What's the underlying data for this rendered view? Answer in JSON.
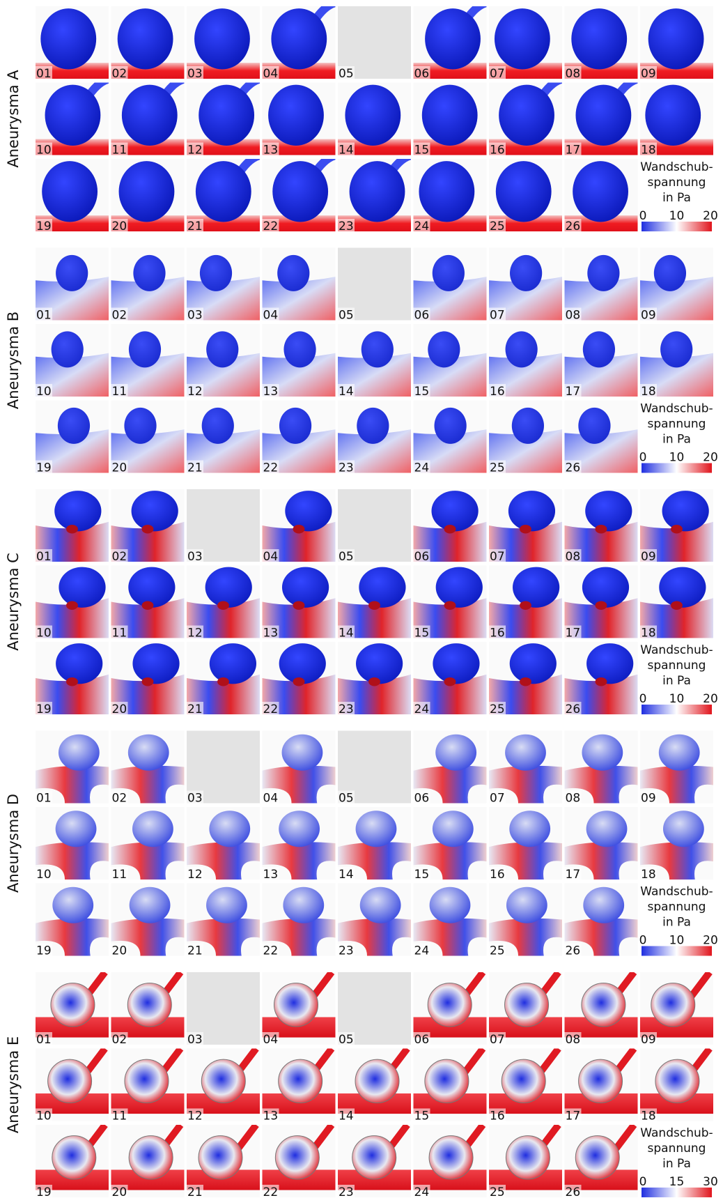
{
  "groups": [
    {
      "label": "Aneurysma A",
      "tiles": [
        {
          "label": "01"
        },
        {
          "label": "02"
        },
        {
          "label": "03"
        },
        {
          "label": "04"
        },
        {
          "label": "05",
          "missing": true
        },
        {
          "label": "06"
        },
        {
          "label": "07"
        },
        {
          "label": "08"
        },
        {
          "label": "09"
        },
        {
          "label": "10"
        },
        {
          "label": "11"
        },
        {
          "label": "12"
        },
        {
          "label": "13"
        },
        {
          "label": "14"
        },
        {
          "label": "15"
        },
        {
          "label": "16"
        },
        {
          "label": "17"
        },
        {
          "label": "18"
        },
        {
          "label": "19"
        },
        {
          "label": "20"
        },
        {
          "label": "21"
        },
        {
          "label": "22"
        },
        {
          "label": "23"
        },
        {
          "label": "24"
        },
        {
          "label": "25"
        },
        {
          "label": "26"
        }
      ],
      "legend": {
        "title": [
          "Wandschub-",
          "spannung",
          "in Pa"
        ],
        "ticks": [
          0,
          10,
          20
        ]
      }
    },
    {
      "label": "Aneurysma B",
      "tiles": [
        {
          "label": "01"
        },
        {
          "label": "02"
        },
        {
          "label": "03"
        },
        {
          "label": "04"
        },
        {
          "label": "05",
          "missing": true
        },
        {
          "label": "06"
        },
        {
          "label": "07"
        },
        {
          "label": "08"
        },
        {
          "label": "09"
        },
        {
          "label": "10"
        },
        {
          "label": "11"
        },
        {
          "label": "12"
        },
        {
          "label": "13"
        },
        {
          "label": "14"
        },
        {
          "label": "15"
        },
        {
          "label": "16"
        },
        {
          "label": "17"
        },
        {
          "label": "18"
        },
        {
          "label": "19"
        },
        {
          "label": "20"
        },
        {
          "label": "21"
        },
        {
          "label": "22"
        },
        {
          "label": "23"
        },
        {
          "label": "24"
        },
        {
          "label": "25"
        },
        {
          "label": "26"
        }
      ],
      "legend": {
        "title": [
          "Wandschub-",
          "spannung",
          "in Pa"
        ],
        "ticks": [
          0,
          10,
          20
        ]
      }
    },
    {
      "label": "Aneurysma C",
      "tiles": [
        {
          "label": "01"
        },
        {
          "label": "02"
        },
        {
          "label": "03",
          "missing": true
        },
        {
          "label": "04"
        },
        {
          "label": "05",
          "missing": true
        },
        {
          "label": "06"
        },
        {
          "label": "07"
        },
        {
          "label": "08"
        },
        {
          "label": "09"
        },
        {
          "label": "10"
        },
        {
          "label": "11"
        },
        {
          "label": "12"
        },
        {
          "label": "13"
        },
        {
          "label": "14"
        },
        {
          "label": "15"
        },
        {
          "label": "16"
        },
        {
          "label": "17"
        },
        {
          "label": "18"
        },
        {
          "label": "19"
        },
        {
          "label": "20"
        },
        {
          "label": "21"
        },
        {
          "label": "22"
        },
        {
          "label": "23"
        },
        {
          "label": "24"
        },
        {
          "label": "25"
        },
        {
          "label": "26"
        }
      ],
      "legend": {
        "title": [
          "Wandschub-",
          "spannung",
          "in Pa"
        ],
        "ticks": [
          0,
          10,
          20
        ]
      }
    },
    {
      "label": "Aneurysma D",
      "tiles": [
        {
          "label": "01"
        },
        {
          "label": "02"
        },
        {
          "label": "03",
          "missing": true
        },
        {
          "label": "04"
        },
        {
          "label": "05",
          "missing": true
        },
        {
          "label": "06"
        },
        {
          "label": "07"
        },
        {
          "label": "08"
        },
        {
          "label": "09"
        },
        {
          "label": "10"
        },
        {
          "label": "11"
        },
        {
          "label": "12"
        },
        {
          "label": "13"
        },
        {
          "label": "14"
        },
        {
          "label": "15"
        },
        {
          "label": "16"
        },
        {
          "label": "17"
        },
        {
          "label": "18"
        },
        {
          "label": "19"
        },
        {
          "label": "20"
        },
        {
          "label": "21"
        },
        {
          "label": "22"
        },
        {
          "label": "23"
        },
        {
          "label": "24"
        },
        {
          "label": "25"
        },
        {
          "label": "26"
        }
      ],
      "legend": {
        "title": [
          "Wandschub-",
          "spannung",
          "in Pa"
        ],
        "ticks": [
          0,
          10,
          20
        ]
      }
    },
    {
      "label": "Aneurysma E",
      "tiles": [
        {
          "label": "01"
        },
        {
          "label": "02"
        },
        {
          "label": "03",
          "missing": true
        },
        {
          "label": "04"
        },
        {
          "label": "05",
          "missing": true
        },
        {
          "label": "06"
        },
        {
          "label": "07"
        },
        {
          "label": "08"
        },
        {
          "label": "09"
        },
        {
          "label": "10"
        },
        {
          "label": "11"
        },
        {
          "label": "12"
        },
        {
          "label": "13"
        },
        {
          "label": "14"
        },
        {
          "label": "15"
        },
        {
          "label": "16"
        },
        {
          "label": "17"
        },
        {
          "label": "18"
        },
        {
          "label": "19"
        },
        {
          "label": "20"
        },
        {
          "label": "21"
        },
        {
          "label": "22"
        },
        {
          "label": "23"
        },
        {
          "label": "24"
        },
        {
          "label": "25"
        },
        {
          "label": "26"
        }
      ],
      "legend": {
        "title": [
          "Wandschub-",
          "spannung",
          "in Pa"
        ],
        "ticks": [
          0,
          15,
          30
        ]
      }
    }
  ]
}
